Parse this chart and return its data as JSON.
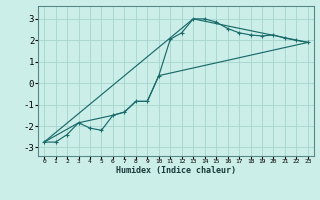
{
  "title": "",
  "xlabel": "Humidex (Indice chaleur)",
  "bg_color": "#cceee8",
  "line_color": "#1a6b6b",
  "grid_color": "#aad8d0",
  "xlim": [
    -0.5,
    23.5
  ],
  "ylim": [
    -3.4,
    3.6
  ],
  "xticks": [
    0,
    1,
    2,
    3,
    4,
    5,
    6,
    7,
    8,
    9,
    10,
    11,
    12,
    13,
    14,
    15,
    16,
    17,
    18,
    19,
    20,
    21,
    22,
    23
  ],
  "yticks": [
    -3,
    -2,
    -1,
    0,
    1,
    2,
    3
  ],
  "line1_x": [
    0,
    1,
    2,
    3,
    4,
    5,
    6,
    7,
    8,
    9,
    10,
    11,
    12,
    13,
    14,
    15,
    16,
    17,
    18,
    19,
    20,
    21,
    22,
    23
  ],
  "line1_y": [
    -2.75,
    -2.75,
    -2.4,
    -1.85,
    -2.1,
    -2.2,
    -1.5,
    -1.35,
    -0.85,
    -0.85,
    0.35,
    2.05,
    2.35,
    3.0,
    3.0,
    2.85,
    2.55,
    2.35,
    2.25,
    2.2,
    2.25,
    2.1,
    2.0,
    1.9
  ],
  "line2_x": [
    0,
    3,
    6,
    7,
    8,
    9,
    10,
    23
  ],
  "line2_y": [
    -2.75,
    -1.85,
    -1.5,
    -1.35,
    -0.85,
    -0.85,
    0.35,
    1.9
  ],
  "line3_x": [
    0,
    13,
    23
  ],
  "line3_y": [
    -2.75,
    3.0,
    1.9
  ]
}
